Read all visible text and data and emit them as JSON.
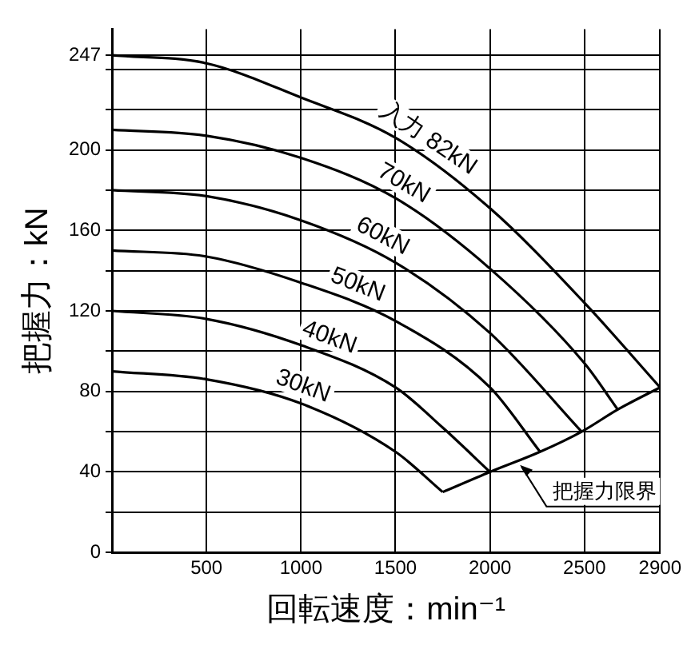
{
  "chart_data": {
    "type": "line",
    "xlabel": "回転速度：min⁻¹",
    "ylabel": "把握力：kN",
    "xlim": [
      0,
      2900
    ],
    "xticks": [
      500,
      1000,
      1500,
      2000,
      2500,
      2900
    ],
    "ylim": [
      0,
      260
    ],
    "yticks": [
      0,
      {
        "value": 20,
        "label": null
      },
      40,
      {
        "value": 60,
        "label": null
      },
      80,
      {
        "value": 100,
        "label": null
      },
      120,
      {
        "value": 140,
        "label": null
      },
      160,
      {
        "value": 180,
        "label": null
      },
      200,
      {
        "value": 220,
        "label": null
      },
      {
        "value": 240,
        "label": null
      },
      247
    ],
    "grid": true,
    "legend": false,
    "marker": "none",
    "line_style": "solid",
    "series": [
      {
        "name": "入力 82kN",
        "color": "#000000",
        "x": [
          0,
          500,
          1000,
          1500,
          2000,
          2500,
          2900
        ],
        "values": [
          247,
          243,
          226,
          206,
          171,
          124,
          82
        ]
      },
      {
        "name": "70kN",
        "color": "#000000",
        "x": [
          0,
          500,
          1000,
          1500,
          2000,
          2500,
          2676
        ],
        "values": [
          210,
          207,
          196,
          176,
          141,
          94,
          71
        ]
      },
      {
        "name": "60kN",
        "color": "#000000",
        "x": [
          0,
          500,
          1000,
          1500,
          2000,
          2485
        ],
        "values": [
          180,
          177,
          165,
          144,
          109,
          60
        ]
      },
      {
        "name": "50kN",
        "color": "#000000",
        "x": [
          0,
          500,
          1000,
          1500,
          2000,
          2265
        ],
        "values": [
          150,
          147,
          134,
          115,
          82,
          50
        ]
      },
      {
        "name": "40kN",
        "color": "#000000",
        "x": [
          0,
          500,
          1000,
          1500,
          1750,
          2000
        ],
        "values": [
          120,
          116,
          103,
          82,
          62,
          40
        ]
      },
      {
        "name": "30kN",
        "color": "#000000",
        "x": [
          0,
          500,
          1000,
          1500,
          1750
        ],
        "values": [
          90,
          86,
          74,
          50,
          30
        ]
      },
      {
        "color": "#000000",
        "x": [
          1750,
          2000,
          2265,
          2485,
          2676,
          2900
        ],
        "values": [
          30,
          40,
          50,
          60,
          71,
          82
        ]
      }
    ],
    "annotations": [
      {
        "text": "把握力限界",
        "x": 2150,
        "y": 45
      }
    ]
  }
}
